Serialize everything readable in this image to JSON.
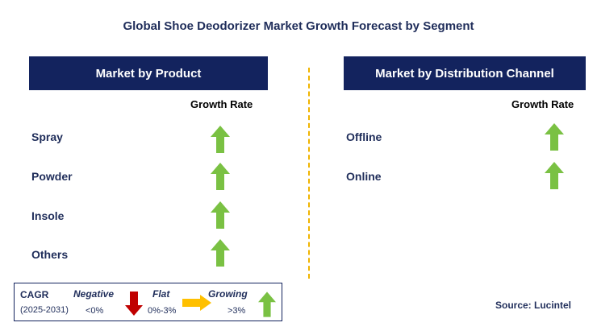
{
  "title": "Global Shoe Deodorizer Market Growth Forecast by Segment",
  "left_panel": {
    "header": "Market by Product",
    "column_header": "Growth Rate",
    "rows": [
      {
        "label": "Spray",
        "trend": "growing"
      },
      {
        "label": "Powder",
        "trend": "growing"
      },
      {
        "label": "Insole",
        "trend": "growing"
      },
      {
        "label": "Others",
        "trend": "growing"
      }
    ]
  },
  "right_panel": {
    "header": "Market by Distribution Channel",
    "column_header": "Growth Rate",
    "rows": [
      {
        "label": "Offline",
        "trend": "growing"
      },
      {
        "label": "Online",
        "trend": "growing"
      }
    ]
  },
  "legend": {
    "cagr_label": "CAGR",
    "period": "(2025-2031)",
    "negative": {
      "label": "Negative",
      "range": "<0%",
      "icon": "down-arrow-icon",
      "color": "#c00000"
    },
    "flat": {
      "label": "Flat",
      "range": "0%-3%",
      "icon": "right-arrow-icon",
      "color": "#ffc000"
    },
    "growing": {
      "label": "Growing",
      "range": ">3%",
      "icon": "up-arrow-icon",
      "color": "#7ac143"
    }
  },
  "source": "Source: Lucintel",
  "colors": {
    "header_bg": "#13235e",
    "text": "#1f2d5a",
    "divider": "#f0b400",
    "up_arrow": "#7ac143"
  }
}
